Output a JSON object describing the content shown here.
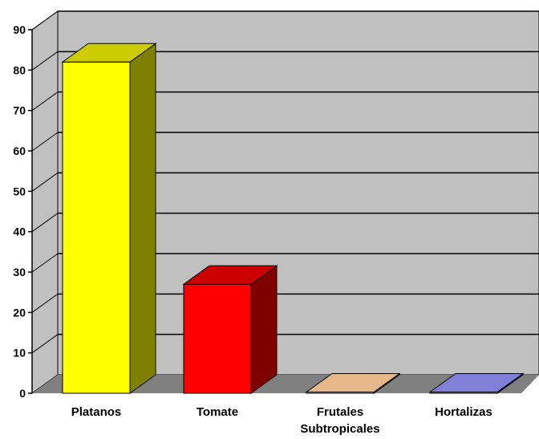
{
  "chart_data": {
    "type": "bar",
    "categories": [
      [
        "Platanos"
      ],
      [
        "Tomate"
      ],
      [
        "Frutales",
        "Subtropicales"
      ],
      [
        "Hortalizas"
      ]
    ],
    "values": [
      82,
      27,
      0.3,
      0.3
    ],
    "ylim": [
      0,
      90
    ],
    "yticks": [
      0,
      10,
      20,
      30,
      40,
      50,
      60,
      70,
      80,
      90
    ],
    "grid": true,
    "legend": "none",
    "colors": {
      "front": [
        "#ffff00",
        "#ff0000",
        "#ffcc99",
        "#9999ff"
      ],
      "side": [
        "#808000",
        "#800000",
        "#b38f6b",
        "#6b6bb3"
      ],
      "top": [
        "#cccc00",
        "#cc0000",
        "#e6b88a",
        "#8080d9"
      ],
      "wall": "#c0c0c0",
      "floor": "#808080"
    }
  }
}
